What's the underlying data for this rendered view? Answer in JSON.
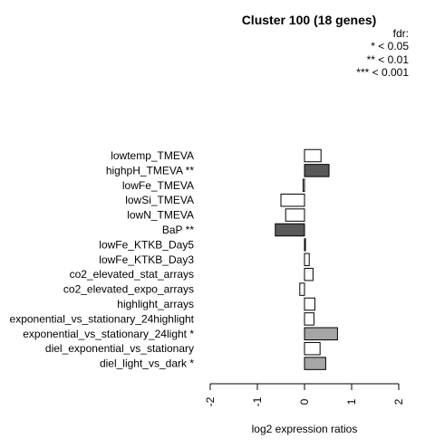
{
  "chart_data": {
    "type": "bar",
    "orientation": "horizontal",
    "title": "Cluster 100 (18 genes)",
    "xlabel": "log2 expression ratios",
    "ylabel": "",
    "xlim": [
      -2,
      2
    ],
    "xticks": [
      "-2",
      "-1",
      "0",
      "1",
      "2"
    ],
    "legend": {
      "title": "fdr:",
      "entries": [
        "* < 0.05",
        "** < 0.01",
        "*** < 0.001"
      ],
      "position": "top-right"
    },
    "colors": {
      "none": "#ffffff",
      "*": "#a6a6a6",
      "**": "#595959",
      "***": "#262626",
      "stroke": "#000000"
    },
    "bars": [
      {
        "label": "lowtemp_TMEVA",
        "value": 0.35,
        "sig": ""
      },
      {
        "label": "highpH_TMEVA **",
        "value": 0.52,
        "sig": "**"
      },
      {
        "label": "lowFe_TMEVA",
        "value": -0.03,
        "sig": ""
      },
      {
        "label": "lowSi_TMEVA",
        "value": -0.5,
        "sig": ""
      },
      {
        "label": "lowN_TMEVA",
        "value": -0.4,
        "sig": ""
      },
      {
        "label": "BaP **",
        "value": -0.62,
        "sig": "**"
      },
      {
        "label": "lowFe_KTKB_Day5",
        "value": 0.02,
        "sig": ""
      },
      {
        "label": "lowFe_KTKB_Day3",
        "value": 0.1,
        "sig": ""
      },
      {
        "label": "co2_elevated_stat_arrays",
        "value": 0.18,
        "sig": ""
      },
      {
        "label": "co2_elevated_expo_arrays",
        "value": -0.1,
        "sig": ""
      },
      {
        "label": "highlight_arrays",
        "value": 0.22,
        "sig": ""
      },
      {
        "label": "exponential_vs_stationary_24highlight",
        "value": 0.2,
        "sig": ""
      },
      {
        "label": "exponential_vs_stationary_24light *",
        "value": 0.7,
        "sig": "*"
      },
      {
        "label": "diel_exponential_vs_stationary",
        "value": 0.33,
        "sig": ""
      },
      {
        "label": "diel_light_vs_dark *",
        "value": 0.45,
        "sig": "*"
      }
    ]
  }
}
